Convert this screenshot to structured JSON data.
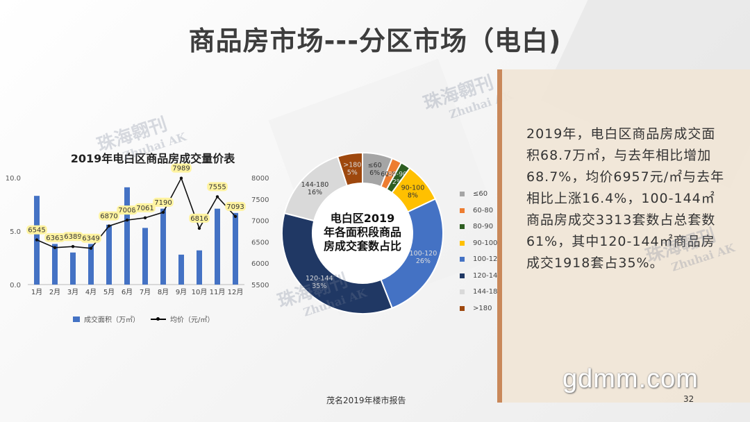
{
  "slide": {
    "title": "商品房市场---分区市场（电白)",
    "footer": "茂名2019年楼市报告",
    "page_number": "32",
    "website": "gdmm.com",
    "watermark": {
      "cn": "珠海翱刊",
      "en": "Zhuhai AK"
    },
    "summary": "2019年，电白区商品房成交面积68.7万㎡，与去年相比增加68.7%，均价6957元/㎡与去年相比上涨16.4%，100-144㎡商品房成交3313套数占总套数61%，其中120-144㎡商品房成交1918套占35%。",
    "colors": {
      "accent": "#c9885a",
      "panel": "#f0e6d7",
      "bar": "#4472c4"
    }
  },
  "chart_data": [
    {
      "type": "bar+line",
      "title": "2019年电白区商品房成交量价表",
      "categories": [
        "1月",
        "2月",
        "3月",
        "4月",
        "5月",
        "6月",
        "7月",
        "8月",
        "9月",
        "10月",
        "11月",
        "12月"
      ],
      "series": [
        {
          "name": "成交面积（万㎡）",
          "type": "bar",
          "axis": "left",
          "values": [
            8.3,
            3.8,
            3.0,
            3.8,
            5.6,
            9.1,
            5.3,
            7.1,
            2.8,
            3.2,
            7.1,
            6.7
          ]
        },
        {
          "name": "均价（元/㎡）",
          "type": "line",
          "axis": "right",
          "values": [
            6545,
            6363,
            6389,
            6349,
            6870,
            7008,
            7061,
            7190,
            7989,
            6816,
            7555,
            7093
          ]
        }
      ],
      "y_left": {
        "ticks": [
          "0.0",
          "5.0",
          "10.0"
        ],
        "range": [
          0,
          10
        ]
      },
      "y_right": {
        "ticks": [
          "5500",
          "6000",
          "6500",
          "7000",
          "7500",
          "8000"
        ],
        "range": [
          5500,
          8000
        ]
      },
      "legend_position": "bottom"
    },
    {
      "type": "pie",
      "title": "电白区2019年各面积段商品房成交套数占比",
      "slices": [
        {
          "label": "≤60",
          "value": 6,
          "text": "≤60\n6%",
          "color": "#a5a5a5"
        },
        {
          "label": "60-80",
          "value": 2,
          "text": "60-80",
          "color": "#ed7d31"
        },
        {
          "label": "80-90",
          "value": 2,
          "text": "80-90\n2%",
          "color": "#2e5e22"
        },
        {
          "label": "90-100",
          "value": 8,
          "text": "90-100\n8%",
          "color": "#ffc000"
        },
        {
          "label": "100-120",
          "value": 26,
          "text": "100-120\n26%",
          "color": "#4472c4"
        },
        {
          "label": "120-144",
          "value": 35,
          "text": "120-144\n35%",
          "color": "#203864"
        },
        {
          "label": "144-180",
          "value": 16,
          "text": "144-180\n16%",
          "color": "#d9d9d9"
        },
        {
          "label": ">180",
          "value": 5,
          "text": ">180\n5%",
          "color": "#9e480e"
        }
      ],
      "legend_position": "right"
    }
  ]
}
